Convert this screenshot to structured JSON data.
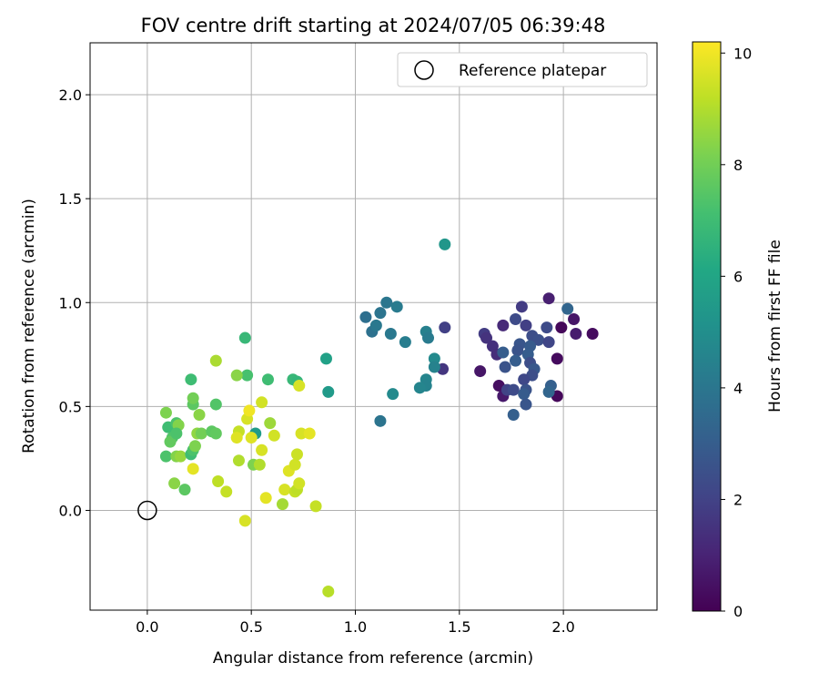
{
  "chart_data": {
    "type": "scatter",
    "title": "FOV centre drift starting at 2024/07/05 06:39:48",
    "xlabel": "Angular distance from reference (arcmin)",
    "ylabel": "Rotation from reference (arcmin)",
    "xlim": [
      -0.275,
      2.45
    ],
    "ylim": [
      -0.48,
      2.25
    ],
    "xticks": [
      0.0,
      0.5,
      1.0,
      1.5,
      2.0
    ],
    "xtick_labels": [
      "0.0",
      "0.5",
      "1.0",
      "1.5",
      "2.0"
    ],
    "yticks": [
      0.0,
      0.5,
      1.0,
      1.5,
      2.0
    ],
    "ytick_labels": [
      "0.0",
      "0.5",
      "1.0",
      "1.5",
      "2.0"
    ],
    "grid": true,
    "legend": {
      "placement": "top-right",
      "entries": [
        {
          "label": "Reference platepar",
          "marker": "open-circle"
        }
      ]
    },
    "colormap": "viridis",
    "colorbar": {
      "label": "Hours from first FF file",
      "range": [
        0,
        10.2
      ],
      "ticks": [
        0,
        2,
        4,
        6,
        8,
        10
      ],
      "tick_labels": [
        "0",
        "2",
        "4",
        "6",
        "8",
        "10"
      ]
    },
    "reference_point": {
      "x": 0.0,
      "y": 0.0
    },
    "points": [
      {
        "x": 1.93,
        "y": 1.02,
        "c": 0.9
      },
      {
        "x": 2.05,
        "y": 0.92,
        "c": 0.6
      },
      {
        "x": 2.14,
        "y": 0.85,
        "c": 0.3
      },
      {
        "x": 1.99,
        "y": 0.88,
        "c": 0.2
      },
      {
        "x": 2.06,
        "y": 0.85,
        "c": 0.8
      },
      {
        "x": 1.97,
        "y": 0.73,
        "c": 0.3
      },
      {
        "x": 1.97,
        "y": 0.55,
        "c": 0.2
      },
      {
        "x": 1.6,
        "y": 0.67,
        "c": 0.6
      },
      {
        "x": 1.69,
        "y": 0.6,
        "c": 0.4
      },
      {
        "x": 1.71,
        "y": 0.55,
        "c": 0.7
      },
      {
        "x": 1.71,
        "y": 0.89,
        "c": 1.2
      },
      {
        "x": 1.62,
        "y": 0.85,
        "c": 1.8
      },
      {
        "x": 1.63,
        "y": 0.83,
        "c": 1.5
      },
      {
        "x": 1.66,
        "y": 0.79,
        "c": 1.4
      },
      {
        "x": 1.68,
        "y": 0.75,
        "c": 1.3
      },
      {
        "x": 1.8,
        "y": 0.98,
        "c": 1.8
      },
      {
        "x": 1.77,
        "y": 0.92,
        "c": 2.3
      },
      {
        "x": 1.82,
        "y": 0.89,
        "c": 1.9
      },
      {
        "x": 1.85,
        "y": 0.84,
        "c": 2.4
      },
      {
        "x": 1.88,
        "y": 0.82,
        "c": 2.5
      },
      {
        "x": 1.92,
        "y": 0.88,
        "c": 2.3
      },
      {
        "x": 1.93,
        "y": 0.81,
        "c": 2.1
      },
      {
        "x": 1.79,
        "y": 0.8,
        "c": 2.7
      },
      {
        "x": 1.78,
        "y": 0.77,
        "c": 2.6
      },
      {
        "x": 1.84,
        "y": 0.79,
        "c": 2.9
      },
      {
        "x": 1.83,
        "y": 0.75,
        "c": 3.0
      },
      {
        "x": 1.77,
        "y": 0.72,
        "c": 3.0
      },
      {
        "x": 1.84,
        "y": 0.71,
        "c": 2.4
      },
      {
        "x": 1.86,
        "y": 0.68,
        "c": 2.8
      },
      {
        "x": 1.85,
        "y": 0.65,
        "c": 2.4
      },
      {
        "x": 1.81,
        "y": 0.63,
        "c": 2.2
      },
      {
        "x": 1.72,
        "y": 0.69,
        "c": 2.6
      },
      {
        "x": 1.71,
        "y": 0.76,
        "c": 3.0
      },
      {
        "x": 1.73,
        "y": 0.58,
        "c": 2.0
      },
      {
        "x": 1.76,
        "y": 0.58,
        "c": 2.3
      },
      {
        "x": 1.82,
        "y": 0.58,
        "c": 2.6
      },
      {
        "x": 1.81,
        "y": 0.56,
        "c": 2.9
      },
      {
        "x": 1.94,
        "y": 0.6,
        "c": 3.1
      },
      {
        "x": 1.93,
        "y": 0.57,
        "c": 3.3
      },
      {
        "x": 1.82,
        "y": 0.51,
        "c": 2.7
      },
      {
        "x": 1.76,
        "y": 0.46,
        "c": 3.1
      },
      {
        "x": 2.02,
        "y": 0.97,
        "c": 3.3
      },
      {
        "x": 1.43,
        "y": 0.88,
        "c": 1.9
      },
      {
        "x": 1.42,
        "y": 0.68,
        "c": 1.6
      },
      {
        "x": 1.05,
        "y": 0.93,
        "c": 3.7
      },
      {
        "x": 1.08,
        "y": 0.86,
        "c": 3.8
      },
      {
        "x": 1.1,
        "y": 0.89,
        "c": 4.1
      },
      {
        "x": 1.12,
        "y": 0.95,
        "c": 3.9
      },
      {
        "x": 1.15,
        "y": 1.0,
        "c": 4.0
      },
      {
        "x": 1.2,
        "y": 0.98,
        "c": 4.2
      },
      {
        "x": 1.17,
        "y": 0.85,
        "c": 4.1
      },
      {
        "x": 1.24,
        "y": 0.81,
        "c": 4.3
      },
      {
        "x": 1.34,
        "y": 0.86,
        "c": 4.4
      },
      {
        "x": 1.35,
        "y": 0.83,
        "c": 4.2
      },
      {
        "x": 1.38,
        "y": 0.73,
        "c": 4.8
      },
      {
        "x": 1.38,
        "y": 0.69,
        "c": 4.5
      },
      {
        "x": 1.34,
        "y": 0.63,
        "c": 4.6
      },
      {
        "x": 1.34,
        "y": 0.6,
        "c": 4.5
      },
      {
        "x": 1.31,
        "y": 0.59,
        "c": 4.6
      },
      {
        "x": 1.18,
        "y": 0.56,
        "c": 4.8
      },
      {
        "x": 1.12,
        "y": 0.43,
        "c": 3.9
      },
      {
        "x": 1.43,
        "y": 1.28,
        "c": 5.3
      },
      {
        "x": 0.86,
        "y": 0.73,
        "c": 5.8
      },
      {
        "x": 0.87,
        "y": 0.57,
        "c": 5.5
      },
      {
        "x": 0.47,
        "y": 0.83,
        "c": 6.8
      },
      {
        "x": 0.7,
        "y": 0.63,
        "c": 6.8
      },
      {
        "x": 0.72,
        "y": 0.62,
        "c": 6.7
      },
      {
        "x": 0.58,
        "y": 0.63,
        "c": 7.0
      },
      {
        "x": 0.48,
        "y": 0.65,
        "c": 7.2
      },
      {
        "x": 0.52,
        "y": 0.37,
        "c": 5.6
      },
      {
        "x": 0.21,
        "y": 0.63,
        "c": 7.0
      },
      {
        "x": 0.22,
        "y": 0.51,
        "c": 7.6
      },
      {
        "x": 0.22,
        "y": 0.54,
        "c": 8.0
      },
      {
        "x": 0.33,
        "y": 0.51,
        "c": 7.4
      },
      {
        "x": 0.43,
        "y": 0.65,
        "c": 8.4
      },
      {
        "x": 0.33,
        "y": 0.72,
        "c": 8.9
      },
      {
        "x": 0.09,
        "y": 0.47,
        "c": 8.2
      },
      {
        "x": 0.1,
        "y": 0.4,
        "c": 7.0
      },
      {
        "x": 0.12,
        "y": 0.35,
        "c": 7.4
      },
      {
        "x": 0.11,
        "y": 0.33,
        "c": 7.7
      },
      {
        "x": 0.14,
        "y": 0.42,
        "c": 7.3
      },
      {
        "x": 0.15,
        "y": 0.41,
        "c": 8.3
      },
      {
        "x": 0.14,
        "y": 0.37,
        "c": 7.3
      },
      {
        "x": 0.09,
        "y": 0.26,
        "c": 7.3
      },
      {
        "x": 0.14,
        "y": 0.26,
        "c": 8.3
      },
      {
        "x": 0.16,
        "y": 0.26,
        "c": 8.6
      },
      {
        "x": 0.13,
        "y": 0.13,
        "c": 8.4
      },
      {
        "x": 0.18,
        "y": 0.1,
        "c": 7.6
      },
      {
        "x": 0.21,
        "y": 0.27,
        "c": 7.0
      },
      {
        "x": 0.22,
        "y": 0.29,
        "c": 7.3
      },
      {
        "x": 0.23,
        "y": 0.31,
        "c": 8.2
      },
      {
        "x": 0.24,
        "y": 0.37,
        "c": 8.5
      },
      {
        "x": 0.26,
        "y": 0.37,
        "c": 8.0
      },
      {
        "x": 0.31,
        "y": 0.38,
        "c": 7.6
      },
      {
        "x": 0.33,
        "y": 0.37,
        "c": 7.7
      },
      {
        "x": 0.25,
        "y": 0.46,
        "c": 8.4
      },
      {
        "x": 0.22,
        "y": 0.2,
        "c": 9.8
      },
      {
        "x": 0.34,
        "y": 0.14,
        "c": 9.2
      },
      {
        "x": 0.38,
        "y": 0.09,
        "c": 9.3
      },
      {
        "x": 0.44,
        "y": 0.38,
        "c": 9.3
      },
      {
        "x": 0.43,
        "y": 0.35,
        "c": 9.7
      },
      {
        "x": 0.44,
        "y": 0.24,
        "c": 9.0
      },
      {
        "x": 0.48,
        "y": 0.44,
        "c": 9.6
      },
      {
        "x": 0.49,
        "y": 0.48,
        "c": 10.0
      },
      {
        "x": 0.5,
        "y": 0.35,
        "c": 9.7
      },
      {
        "x": 0.51,
        "y": 0.22,
        "c": 8.2
      },
      {
        "x": 0.54,
        "y": 0.22,
        "c": 9.0
      },
      {
        "x": 0.55,
        "y": 0.52,
        "c": 9.5
      },
      {
        "x": 0.55,
        "y": 0.29,
        "c": 9.6
      },
      {
        "x": 0.57,
        "y": 0.06,
        "c": 9.8
      },
      {
        "x": 0.59,
        "y": 0.42,
        "c": 8.7
      },
      {
        "x": 0.61,
        "y": 0.36,
        "c": 9.5
      },
      {
        "x": 0.47,
        "y": -0.05,
        "c": 9.6
      },
      {
        "x": 0.65,
        "y": 0.03,
        "c": 8.8
      },
      {
        "x": 0.66,
        "y": 0.1,
        "c": 9.6
      },
      {
        "x": 0.68,
        "y": 0.19,
        "c": 9.7
      },
      {
        "x": 0.71,
        "y": 0.22,
        "c": 9.5
      },
      {
        "x": 0.72,
        "y": 0.27,
        "c": 9.4
      },
      {
        "x": 0.71,
        "y": 0.09,
        "c": 9.3
      },
      {
        "x": 0.72,
        "y": 0.1,
        "c": 9.2
      },
      {
        "x": 0.73,
        "y": 0.13,
        "c": 9.5
      },
      {
        "x": 0.74,
        "y": 0.37,
        "c": 9.6
      },
      {
        "x": 0.78,
        "y": 0.37,
        "c": 9.8
      },
      {
        "x": 0.73,
        "y": 0.6,
        "c": 9.6
      },
      {
        "x": 0.81,
        "y": 0.02,
        "c": 9.3
      },
      {
        "x": 0.87,
        "y": -0.39,
        "c": 9.1
      }
    ]
  }
}
